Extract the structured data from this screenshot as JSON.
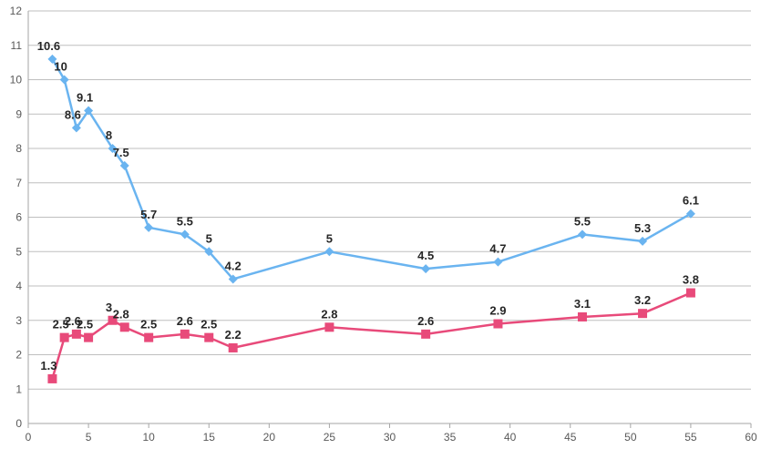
{
  "chart_data": {
    "type": "line",
    "title": "",
    "xlabel": "",
    "ylabel": "",
    "xlim": [
      0,
      60
    ],
    "ylim": [
      0,
      12
    ],
    "xticks": [
      0,
      5,
      10,
      15,
      20,
      25,
      30,
      35,
      40,
      45,
      50,
      55,
      60
    ],
    "yticks": [
      0,
      1,
      2,
      3,
      4,
      5,
      6,
      7,
      8,
      9,
      10,
      11,
      12
    ],
    "grid": "horizontal",
    "legend": "none",
    "series": [
      {
        "color": "#6ab4f0",
        "marker": "diamond",
        "x": [
          2,
          3,
          4,
          5,
          7,
          8,
          10,
          13,
          15,
          17,
          25,
          33,
          39,
          46,
          51,
          55
        ],
        "y": [
          10.6,
          10,
          8.6,
          9.1,
          8,
          7.5,
          5.7,
          5.5,
          5,
          4.2,
          5,
          4.5,
          4.7,
          5.5,
          5.3,
          6.1
        ],
        "labels": [
          "10.6",
          "10",
          "8.6",
          "9.1",
          "8",
          "7.5",
          "5.7",
          "5.5",
          "5",
          "4.2",
          "5",
          "4.5",
          "4.7",
          "5.5",
          "5.3",
          "6.1"
        ]
      },
      {
        "color": "#e84a7a",
        "marker": "square",
        "x": [
          2,
          3,
          4,
          5,
          7,
          8,
          10,
          13,
          15,
          17,
          25,
          33,
          39,
          46,
          51,
          55
        ],
        "y": [
          1.3,
          2.5,
          2.6,
          2.5,
          3,
          2.8,
          2.5,
          2.6,
          2.5,
          2.2,
          2.8,
          2.6,
          2.9,
          3.1,
          3.2,
          3.8
        ],
        "labels": [
          "1.3",
          "2.5",
          "2.6",
          "2.5",
          "3",
          "2.8",
          "2.5",
          "2.6",
          "2.5",
          "2.2",
          "2.8",
          "2.6",
          "2.9",
          "3.1",
          "3.2",
          "3.8"
        ]
      }
    ]
  }
}
